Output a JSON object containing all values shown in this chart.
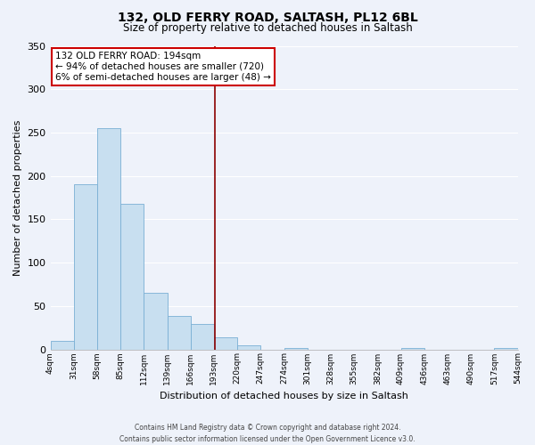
{
  "title": "132, OLD FERRY ROAD, SALTASH, PL12 6BL",
  "subtitle": "Size of property relative to detached houses in Saltash",
  "xlabel": "Distribution of detached houses by size in Saltash",
  "ylabel": "Number of detached properties",
  "bar_color": "#c8dff0",
  "bar_edgecolor": "#7aafd4",
  "bin_edges": [
    4,
    31,
    58,
    85,
    112,
    139,
    166,
    193,
    220,
    247,
    274,
    301,
    328,
    355,
    382,
    409,
    436,
    463,
    490,
    517,
    544
  ],
  "bin_labels": [
    "4sqm",
    "31sqm",
    "58sqm",
    "85sqm",
    "112sqm",
    "139sqm",
    "166sqm",
    "193sqm",
    "220sqm",
    "247sqm",
    "274sqm",
    "301sqm",
    "328sqm",
    "355sqm",
    "382sqm",
    "409sqm",
    "436sqm",
    "463sqm",
    "490sqm",
    "517sqm",
    "544sqm"
  ],
  "bar_heights": [
    10,
    190,
    255,
    168,
    65,
    38,
    29,
    14,
    5,
    0,
    2,
    0,
    0,
    0,
    0,
    2,
    0,
    0,
    0,
    2
  ],
  "ylim": [
    0,
    350
  ],
  "yticks": [
    0,
    50,
    100,
    150,
    200,
    250,
    300,
    350
  ],
  "vline_x": 194,
  "vline_color": "#8b0000",
  "annotation_title": "132 OLD FERRY ROAD: 194sqm",
  "annotation_line1": "← 94% of detached houses are smaller (720)",
  "annotation_line2": "6% of semi-detached houses are larger (48) →",
  "annotation_box_color": "#ffffff",
  "annotation_box_edgecolor": "#cc0000",
  "footer_line1": "Contains HM Land Registry data © Crown copyright and database right 2024.",
  "footer_line2": "Contains public sector information licensed under the Open Government Licence v3.0.",
  "background_color": "#eef2fa",
  "grid_color": "#ffffff",
  "title_fontsize": 10,
  "subtitle_fontsize": 8.5,
  "ylabel_fontsize": 8,
  "xlabel_fontsize": 8,
  "tick_fontsize": 6.5,
  "footer_fontsize": 5.5,
  "ann_fontsize": 7.5
}
